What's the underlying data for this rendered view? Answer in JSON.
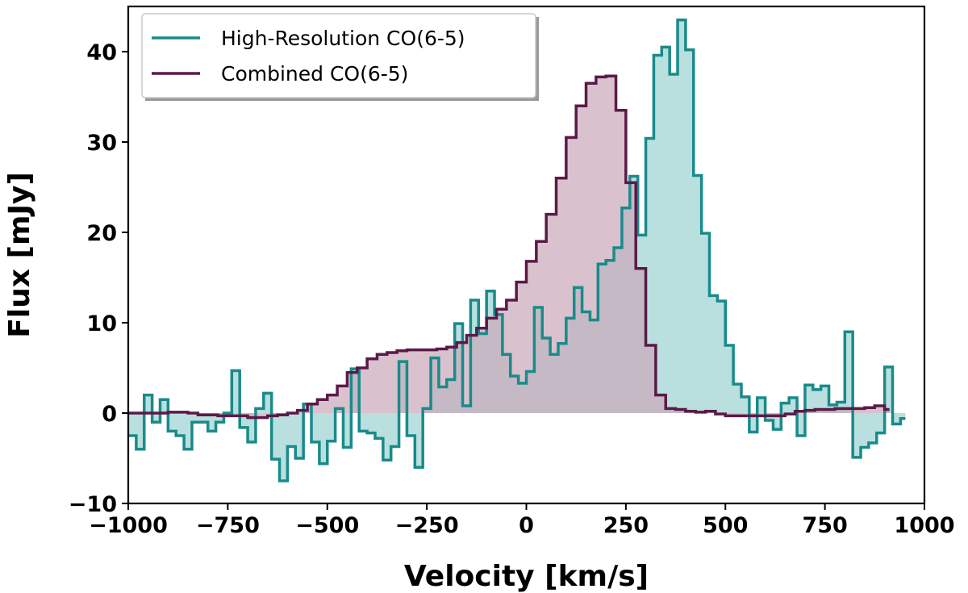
{
  "chart_data": {
    "type": "line",
    "style": "step-filled",
    "title": "",
    "xlabel": "Velocity [km/s]",
    "ylabel": "Flux [mJy]",
    "xlim": [
      -1000,
      1000
    ],
    "ylim": [
      -10,
      45
    ],
    "xticks": [
      -1000,
      -750,
      -500,
      -250,
      0,
      250,
      500,
      750,
      1000
    ],
    "xtick_labels": [
      "−1000",
      "−750",
      "−500",
      "−250",
      "0",
      "250",
      "500",
      "750",
      "1000"
    ],
    "yticks": [
      -10,
      0,
      10,
      20,
      30,
      40
    ],
    "ytick_labels": [
      "−10",
      "0",
      "10",
      "20",
      "30",
      "40"
    ],
    "grid": false,
    "legend_position": "top-left",
    "series": [
      {
        "name": "High-Resolution CO(6-5)",
        "color": "#1a8a8a",
        "fill": "#7fc4c4",
        "step_width": 20,
        "start": -1000,
        "values": [
          -2.5,
          -4,
          2,
          -1,
          1.5,
          -2,
          -2.5,
          -4,
          -1,
          -1,
          -2,
          -1,
          0,
          4.7,
          -1.6,
          -3.2,
          0.5,
          2.2,
          -5.1,
          -7.5,
          -3.7,
          -5,
          1,
          -3.2,
          -5.6,
          -3.1,
          0.5,
          -3.8,
          4.9,
          -2,
          -2.2,
          -2.8,
          -5.2,
          -3.7,
          5.7,
          -2.5,
          -6,
          0.5,
          6.1,
          2.9,
          3.7,
          9.9,
          0.8,
          12.5,
          8.8,
          13.5,
          10.9,
          6.5,
          4.1,
          3.3,
          4.6,
          11.7,
          8.3,
          6.5,
          7.7,
          10.5,
          13.9,
          11.2,
          10.3,
          16.5,
          16.9,
          18.3,
          22.7,
          26.2,
          19.7,
          30.4,
          39.6,
          40.5,
          37.5,
          43.5,
          40.2,
          26.3,
          19.9,
          13,
          12.4,
          7.5,
          3.2,
          1.8,
          -2.1,
          1.7,
          -0.8,
          -1.8,
          1.1,
          1.7,
          -2.5,
          3.1,
          2.6,
          3,
          0.9,
          1.2,
          9,
          -4.9,
          -3.8,
          -3.3,
          -2.2,
          5.1,
          -1.2
        ],
        "last_value": -0.6
      },
      {
        "name": "Combined CO(6-5)",
        "color": "#5a1a48",
        "fill": "#c9a8b8",
        "step_width": 25,
        "start": -1000,
        "values": [
          0,
          0,
          0,
          0,
          0.1,
          0.1,
          0,
          -0.2,
          -0.2,
          -0.3,
          -0.3,
          -0.3,
          -0.5,
          -0.5,
          -0.3,
          -0.2,
          0,
          0.3,
          1,
          1.5,
          2,
          3,
          4.5,
          5,
          6,
          6.5,
          6.7,
          6.9,
          7,
          7,
          7,
          7.1,
          7.3,
          7.8,
          8.6,
          9.4,
          10.5,
          11.5,
          12.5,
          14.5,
          16.8,
          19,
          22,
          26,
          30.5,
          34,
          36.5,
          37.2,
          37.3,
          33.5,
          25.5,
          16,
          7.5,
          2,
          0.5,
          0.4,
          0.2,
          0.1,
          0.2,
          -0.1,
          -0.3,
          -0.3,
          -0.3,
          -0.3,
          -0.3,
          -0.3,
          -0.1,
          0.2,
          0.3,
          0.4,
          0.4,
          0.5,
          0.5,
          0.5,
          0.6,
          0.8
        ],
        "last_value": 0.4
      }
    ]
  }
}
